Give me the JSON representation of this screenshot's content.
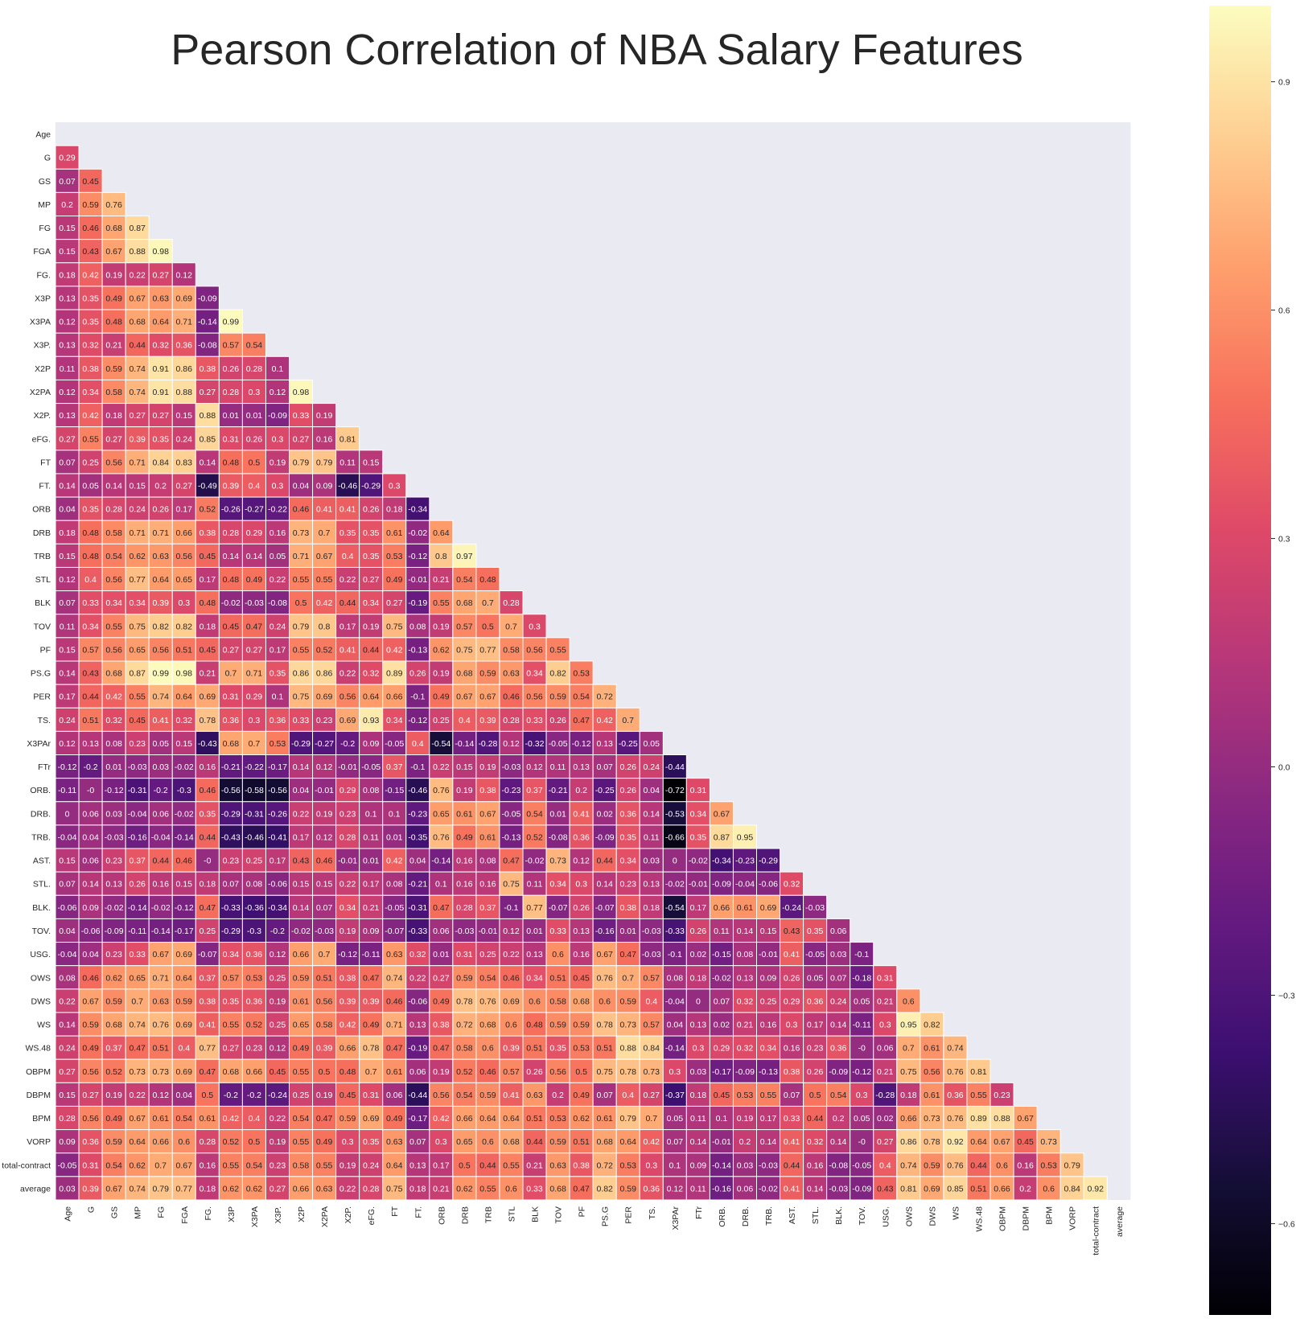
{
  "chart_data": {
    "type": "heatmap",
    "title": "Pearson Correlation of NBA Salary Features",
    "xlabel": "",
    "ylabel": "",
    "mask": "upper-triangle-and-diagonal",
    "colormap": "magma",
    "colorbar": {
      "vmin": -0.72,
      "vmax": 1.0,
      "ticks": [
        -0.6,
        -0.3,
        0.0,
        0.3,
        0.6,
        0.9
      ],
      "tick_labels": [
        "−0.6",
        "−0.3",
        "0.0",
        "0.3",
        "0.6",
        "0.9"
      ]
    },
    "labels": [
      "Age",
      "G",
      "GS",
      "MP",
      "FG",
      "FGA",
      "FG.",
      "X3P",
      "X3PA",
      "X3P.",
      "X2P",
      "X2PA",
      "X2P.",
      "eFG.",
      "FT",
      "FT.",
      "ORB",
      "DRB",
      "TRB",
      "STL",
      "BLK",
      "TOV",
      "PF",
      "PS.G",
      "PER",
      "TS.",
      "X3PAr",
      "FTr",
      "ORB.",
      "DRB.",
      "TRB.",
      "AST.",
      "STL.",
      "BLK.",
      "TOV.",
      "USG.",
      "OWS",
      "DWS",
      "WS",
      "WS.48",
      "OBPM",
      "DBPM",
      "BPM",
      "VORP",
      "total-contract",
      "average"
    ],
    "rows": [
      [],
      [
        0.29
      ],
      [
        0.07,
        0.45
      ],
      [
        0.2,
        0.59,
        0.76
      ],
      [
        0.15,
        0.46,
        0.68,
        0.87
      ],
      [
        0.15,
        0.43,
        0.67,
        0.88,
        0.98
      ],
      [
        0.18,
        0.42,
        0.19,
        0.22,
        0.27,
        0.12
      ],
      [
        0.13,
        0.35,
        0.49,
        0.67,
        0.63,
        0.69,
        -0.09
      ],
      [
        0.12,
        0.35,
        0.48,
        0.68,
        0.64,
        0.71,
        -0.14,
        0.99
      ],
      [
        0.13,
        0.32,
        0.21,
        0.44,
        0.32,
        0.36,
        -0.08,
        0.57,
        0.54
      ],
      [
        0.11,
        0.38,
        0.59,
        0.74,
        0.91,
        0.86,
        0.38,
        0.26,
        0.28,
        0.1
      ],
      [
        0.12,
        0.34,
        0.58,
        0.74,
        0.91,
        0.88,
        0.27,
        0.28,
        0.3,
        0.12,
        0.98
      ],
      [
        0.13,
        0.42,
        0.18,
        0.27,
        0.27,
        0.15,
        0.88,
        0.01,
        0.01,
        -0.09,
        0.33,
        0.19
      ],
      [
        0.27,
        0.55,
        0.27,
        0.39,
        0.35,
        0.24,
        0.85,
        0.31,
        0.26,
        0.3,
        0.27,
        0.16,
        0.81
      ],
      [
        0.07,
        0.25,
        0.56,
        0.71,
        0.84,
        0.83,
        0.14,
        0.48,
        0.5,
        0.19,
        0.79,
        0.79,
        0.11,
        0.15
      ],
      [
        0.14,
        0.05,
        0.14,
        0.15,
        0.2,
        0.27,
        -0.49,
        0.39,
        0.4,
        0.3,
        0.04,
        0.09,
        -0.46,
        -0.29,
        0.3
      ],
      [
        0.04,
        0.35,
        0.28,
        0.24,
        0.26,
        0.17,
        0.52,
        -0.26,
        -0.27,
        -0.22,
        0.46,
        0.41,
        0.41,
        0.26,
        0.18,
        -0.34
      ],
      [
        0.18,
        0.48,
        0.58,
        0.71,
        0.71,
        0.66,
        0.38,
        0.28,
        0.29,
        0.16,
        0.73,
        0.7,
        0.35,
        0.35,
        0.61,
        -0.02,
        0.64
      ],
      [
        0.15,
        0.48,
        0.54,
        0.62,
        0.63,
        0.56,
        0.45,
        0.14,
        0.14,
        0.05,
        0.71,
        0.67,
        0.4,
        0.35,
        0.53,
        -0.12,
        0.8,
        0.97
      ],
      [
        0.12,
        0.4,
        0.56,
        0.77,
        0.64,
        0.65,
        0.17,
        0.48,
        0.49,
        0.22,
        0.55,
        0.55,
        0.22,
        0.27,
        0.49,
        -0.01,
        0.21,
        0.54,
        0.48
      ],
      [
        0.07,
        0.33,
        0.34,
        0.34,
        0.39,
        0.3,
        0.48,
        -0.02,
        -0.03,
        -0.08,
        0.5,
        0.42,
        0.44,
        0.34,
        0.27,
        -0.19,
        0.55,
        0.68,
        0.7,
        0.28
      ],
      [
        0.11,
        0.34,
        0.55,
        0.75,
        0.82,
        0.82,
        0.18,
        0.45,
        0.47,
        0.24,
        0.79,
        0.8,
        0.17,
        0.19,
        0.75,
        0.08,
        0.19,
        0.57,
        0.5,
        0.7,
        0.3
      ],
      [
        0.15,
        0.57,
        0.56,
        0.65,
        0.56,
        0.51,
        0.45,
        0.27,
        0.27,
        0.17,
        0.55,
        0.52,
        0.41,
        0.44,
        0.42,
        -0.13,
        0.62,
        0.75,
        0.77,
        0.58,
        0.56,
        0.55
      ],
      [
        0.14,
        0.43,
        0.68,
        0.87,
        0.99,
        0.98,
        0.21,
        0.7,
        0.71,
        0.35,
        0.86,
        0.86,
        0.22,
        0.32,
        0.89,
        0.26,
        0.19,
        0.68,
        0.59,
        0.63,
        0.34,
        0.82,
        0.53
      ],
      [
        0.17,
        0.44,
        0.42,
        0.55,
        0.74,
        0.64,
        0.69,
        0.31,
        0.29,
        0.1,
        0.75,
        0.69,
        0.56,
        0.64,
        0.66,
        -0.1,
        0.49,
        0.67,
        0.67,
        0.46,
        0.56,
        0.59,
        0.54,
        0.72
      ],
      [
        0.24,
        0.51,
        0.32,
        0.45,
        0.41,
        0.32,
        0.78,
        0.36,
        0.3,
        0.36,
        0.33,
        0.23,
        0.69,
        0.93,
        0.34,
        -0.12,
        0.25,
        0.4,
        0.39,
        0.28,
        0.33,
        0.26,
        0.47,
        0.42,
        0.7
      ],
      [
        0.12,
        0.13,
        0.08,
        0.23,
        0.05,
        0.15,
        -0.43,
        0.68,
        0.7,
        0.53,
        -0.29,
        -0.27,
        -0.2,
        0.09,
        -0.05,
        0.4,
        -0.54,
        -0.14,
        -0.28,
        0.12,
        -0.32,
        -0.05,
        -0.12,
        0.13,
        -0.25,
        0.05
      ],
      [
        -0.12,
        -0.2,
        0.01,
        -0.03,
        0.03,
        -0.02,
        0.16,
        -0.21,
        -0.22,
        -0.17,
        0.14,
        0.12,
        -0.01,
        -0.05,
        0.37,
        -0.1,
        0.22,
        0.15,
        0.19,
        -0.03,
        0.12,
        0.11,
        0.13,
        0.07,
        0.26,
        0.24,
        -0.44
      ],
      [
        -0.11,
        0,
        -0.12,
        -0.31,
        -0.2,
        -0.3,
        0.46,
        -0.56,
        -0.58,
        -0.56,
        0.04,
        -0.01,
        0.29,
        0.08,
        -0.15,
        -0.46,
        0.76,
        0.19,
        0.38,
        -0.23,
        0.37,
        -0.21,
        0.2,
        -0.25,
        0.26,
        0.04,
        -0.72,
        0.31
      ],
      [
        0,
        0.06,
        0.03,
        -0.04,
        0.06,
        -0.02,
        0.35,
        -0.29,
        -0.31,
        -0.26,
        0.22,
        0.19,
        0.23,
        0.1,
        0.1,
        -0.23,
        0.65,
        0.61,
        0.67,
        -0.05,
        0.54,
        0.01,
        0.41,
        0.02,
        0.36,
        0.14,
        -0.53,
        0.34,
        0.67
      ],
      [
        -0.04,
        0.04,
        -0.03,
        -0.16,
        -0.04,
        -0.14,
        0.44,
        -0.43,
        -0.46,
        -0.41,
        0.17,
        0.12,
        0.28,
        0.11,
        0.01,
        -0.35,
        0.76,
        0.49,
        0.61,
        -0.13,
        0.52,
        -0.08,
        0.36,
        -0.09,
        0.35,
        0.11,
        -0.66,
        0.35,
        0.87,
        0.95
      ],
      [
        0.15,
        0.06,
        0.23,
        0.37,
        0.44,
        0.46,
        0,
        0.23,
        0.25,
        0.17,
        0.43,
        0.46,
        -0.01,
        0.01,
        0.42,
        0.04,
        -0.14,
        0.16,
        0.08,
        0.47,
        -0.02,
        0.73,
        0.12,
        0.44,
        0.34,
        0.03,
        0,
        -0.02,
        -0.34,
        -0.23,
        -0.29
      ],
      [
        0.07,
        0.14,
        0.13,
        0.26,
        0.16,
        0.15,
        0.18,
        0.07,
        0.08,
        -0.06,
        0.15,
        0.15,
        0.22,
        0.17,
        0.08,
        -0.21,
        0.1,
        0.16,
        0.16,
        0.75,
        0.11,
        0.34,
        0.3,
        0.14,
        0.23,
        0.13,
        -0.02,
        -0.01,
        -0.09,
        -0.04,
        -0.06,
        0.32
      ],
      [
        -0.06,
        0.09,
        -0.02,
        -0.14,
        -0.02,
        -0.12,
        0.47,
        -0.33,
        -0.36,
        -0.34,
        0.14,
        0.07,
        0.34,
        0.21,
        -0.05,
        -0.31,
        0.47,
        0.28,
        0.37,
        -0.1,
        0.77,
        -0.07,
        0.26,
        -0.07,
        0.38,
        0.18,
        -0.54,
        0.17,
        0.66,
        0.61,
        0.69,
        -0.24,
        -0.03
      ],
      [
        0.04,
        -0.06,
        -0.09,
        -0.11,
        -0.14,
        -0.17,
        0.25,
        -0.29,
        -0.3,
        -0.2,
        -0.02,
        -0.03,
        0.19,
        0.09,
        -0.07,
        -0.33,
        0.06,
        -0.03,
        -0.01,
        0.12,
        0.01,
        0.33,
        0.13,
        -0.16,
        0.01,
        -0.03,
        -0.33,
        0.26,
        0.11,
        0.14,
        0.15,
        0.43,
        0.35,
        0.06
      ],
      [
        -0.04,
        0.04,
        0.23,
        0.33,
        0.67,
        0.69,
        -0.07,
        0.34,
        0.36,
        0.12,
        0.66,
        0.7,
        -0.12,
        -0.11,
        0.63,
        0.32,
        0.01,
        0.31,
        0.25,
        0.22,
        0.13,
        0.6,
        0.16,
        0.67,
        0.47,
        -0.03,
        -0.1,
        0.02,
        -0.15,
        0.08,
        -0.01,
        0.41,
        -0.05,
        0.03,
        -0.1
      ],
      [
        0.08,
        0.46,
        0.62,
        0.65,
        0.71,
        0.64,
        0.37,
        0.57,
        0.53,
        0.25,
        0.59,
        0.51,
        0.38,
        0.47,
        0.74,
        0.22,
        0.27,
        0.59,
        0.54,
        0.46,
        0.34,
        0.51,
        0.45,
        0.76,
        0.7,
        0.57,
        0.08,
        0.18,
        -0.02,
        0.13,
        0.09,
        0.26,
        0.05,
        0.07,
        -0.18,
        0.31
      ],
      [
        0.22,
        0.67,
        0.59,
        0.7,
        0.63,
        0.59,
        0.38,
        0.35,
        0.36,
        0.19,
        0.61,
        0.56,
        0.39,
        0.39,
        0.46,
        -0.06,
        0.49,
        0.78,
        0.76,
        0.69,
        0.6,
        0.58,
        0.68,
        0.6,
        0.59,
        0.4,
        -0.04,
        0,
        0.07,
        0.32,
        0.25,
        0.29,
        0.36,
        0.24,
        0.05,
        0.21,
        0.6
      ],
      [
        0.14,
        0.59,
        0.68,
        0.74,
        0.76,
        0.69,
        0.41,
        0.55,
        0.52,
        0.25,
        0.65,
        0.58,
        0.42,
        0.49,
        0.71,
        0.13,
        0.38,
        0.72,
        0.68,
        0.6,
        0.48,
        0.59,
        0.59,
        0.78,
        0.73,
        0.57,
        0.04,
        0.13,
        0.02,
        0.21,
        0.16,
        0.3,
        0.17,
        0.14,
        -0.11,
        0.3,
        0.95,
        0.82
      ],
      [
        0.24,
        0.49,
        0.37,
        0.47,
        0.51,
        0.4,
        0.77,
        0.27,
        0.23,
        0.12,
        0.49,
        0.39,
        0.66,
        0.78,
        0.47,
        -0.19,
        0.47,
        0.58,
        0.6,
        0.39,
        0.51,
        0.35,
        0.53,
        0.51,
        0.88,
        0.84,
        -0.14,
        0.3,
        0.29,
        0.32,
        0.34,
        0.16,
        0.23,
        0.36,
        0,
        0.06,
        0.7,
        0.61,
        0.74
      ],
      [
        0.27,
        0.56,
        0.52,
        0.73,
        0.73,
        0.69,
        0.47,
        0.68,
        0.66,
        0.45,
        0.55,
        0.5,
        0.48,
        0.7,
        0.61,
        0.06,
        0.19,
        0.52,
        0.46,
        0.57,
        0.26,
        0.56,
        0.5,
        0.75,
        0.78,
        0.73,
        0.3,
        0.03,
        -0.17,
        -0.09,
        -0.13,
        0.38,
        0.26,
        -0.09,
        -0.12,
        0.21,
        0.75,
        0.56,
        0.76,
        0.81
      ],
      [
        0.15,
        0.27,
        0.19,
        0.22,
        0.12,
        0.04,
        0.5,
        -0.2,
        -0.2,
        -0.24,
        0.25,
        0.19,
        0.45,
        0.31,
        0.06,
        -0.44,
        0.56,
        0.54,
        0.59,
        0.41,
        0.63,
        0.2,
        0.49,
        0.07,
        0.4,
        0.27,
        -0.37,
        0.18,
        0.45,
        0.53,
        0.55,
        0.07,
        0.5,
        0.54,
        0.3,
        -0.28,
        0.18,
        0.61,
        0.36,
        0.55,
        0.23
      ],
      [
        0.28,
        0.56,
        0.49,
        0.67,
        0.61,
        0.54,
        0.61,
        0.42,
        0.4,
        0.22,
        0.54,
        0.47,
        0.59,
        0.69,
        0.49,
        -0.17,
        0.42,
        0.66,
        0.64,
        0.64,
        0.51,
        0.53,
        0.62,
        0.61,
        0.79,
        0.7,
        0.05,
        0.11,
        0.1,
        0.19,
        0.17,
        0.33,
        0.44,
        0.2,
        0.05,
        0.02,
        0.66,
        0.73,
        0.76,
        0.89,
        0.88,
        0.67
      ],
      [
        0.09,
        0.36,
        0.59,
        0.64,
        0.66,
        0.6,
        0.28,
        0.52,
        0.5,
        0.19,
        0.55,
        0.49,
        0.3,
        0.35,
        0.63,
        0.07,
        0.3,
        0.65,
        0.6,
        0.68,
        0.44,
        0.59,
        0.51,
        0.68,
        0.64,
        0.42,
        0.07,
        0.14,
        -0.01,
        0.2,
        0.14,
        0.41,
        0.32,
        0.14,
        0,
        0.27,
        0.86,
        0.78,
        0.92,
        0.64,
        0.67,
        0.45,
        0.73
      ],
      [
        -0.05,
        0.31,
        0.54,
        0.62,
        0.7,
        0.67,
        0.16,
        0.55,
        0.54,
        0.23,
        0.58,
        0.55,
        0.19,
        0.24,
        0.64,
        0.13,
        0.17,
        0.5,
        0.44,
        0.55,
        0.21,
        0.63,
        0.38,
        0.72,
        0.53,
        0.3,
        0.1,
        0.09,
        -0.14,
        0.03,
        -0.03,
        0.44,
        0.16,
        -0.08,
        -0.05,
        0.4,
        0.74,
        0.59,
        0.76,
        0.44,
        0.6,
        0.16,
        0.53,
        0.79
      ],
      [
        0.03,
        0.39,
        0.67,
        0.74,
        0.79,
        0.77,
        0.18,
        0.62,
        0.62,
        0.27,
        0.66,
        0.63,
        0.22,
        0.28,
        0.75,
        0.18,
        0.21,
        0.62,
        0.55,
        0.6,
        0.33,
        0.68,
        0.47,
        0.82,
        0.59,
        0.36,
        0.12,
        0.11,
        -0.16,
        0.06,
        -0.02,
        0.41,
        0.14,
        -0.03,
        -0.09,
        0.43,
        0.81,
        0.69,
        0.85,
        0.51,
        0.66,
        0.2,
        0.6,
        0.84,
        0.92
      ]
    ]
  }
}
